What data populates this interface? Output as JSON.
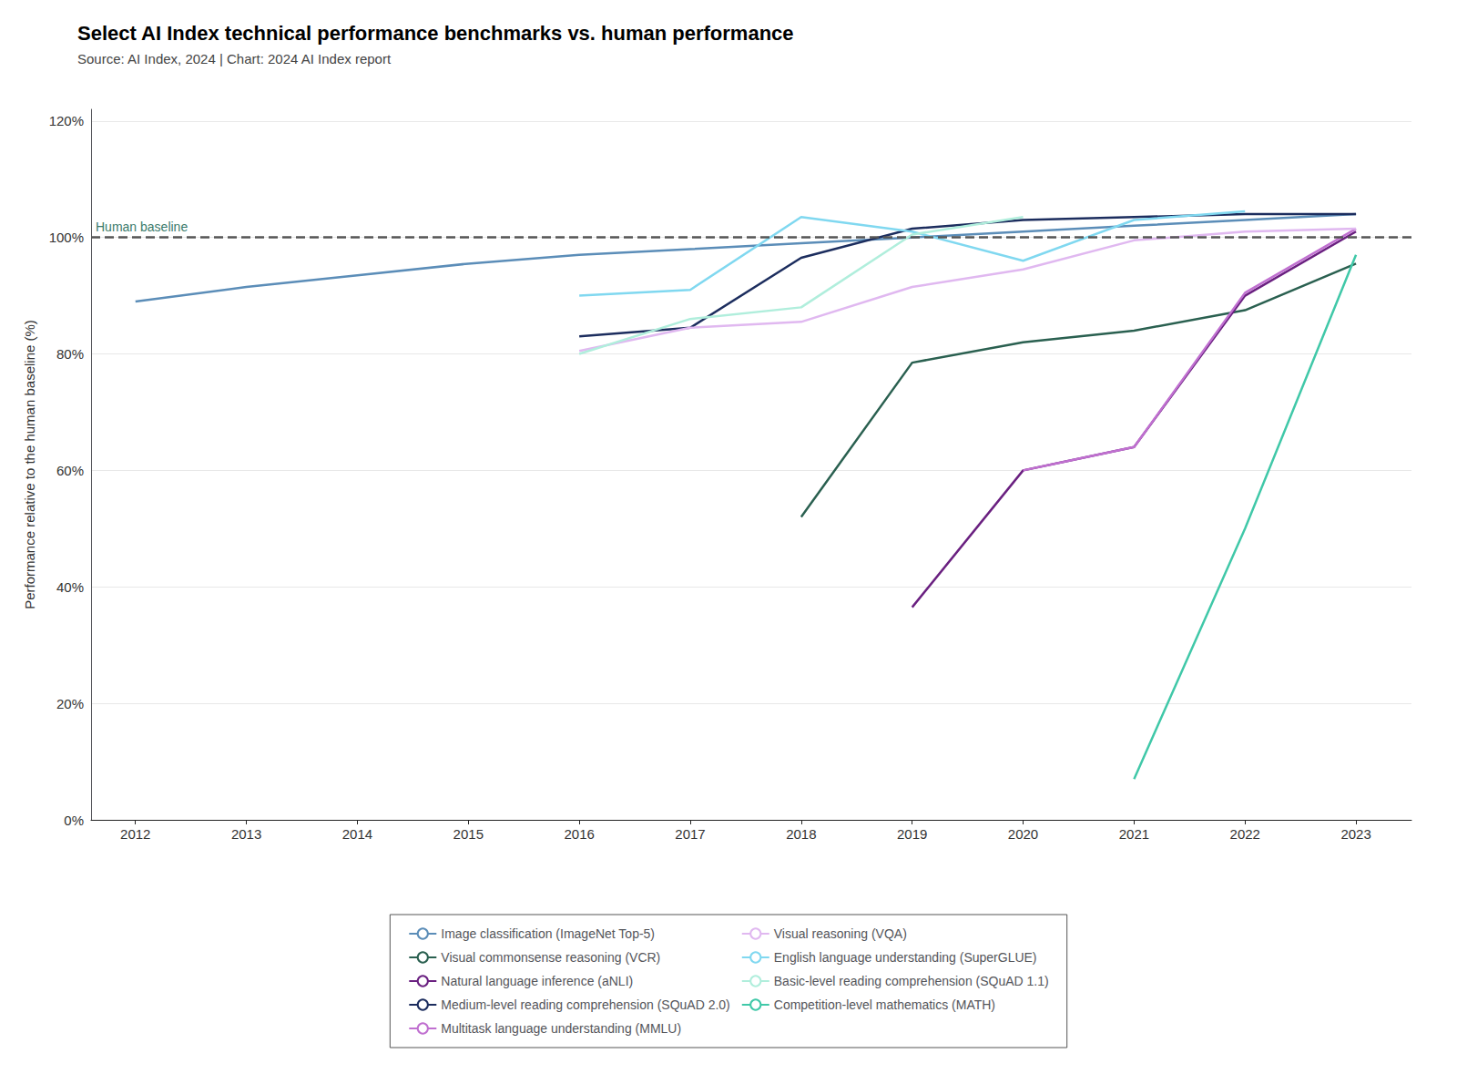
{
  "chart_data": {
    "type": "line",
    "title": "Select AI Index technical performance benchmarks vs. human performance",
    "subtitle": "Source: AI Index, 2024 | Chart: 2024 AI Index report",
    "ylabel": "Performance relative to the human baseline (%)",
    "xlim": [
      2011.6,
      2023.5
    ],
    "xticks": [
      2012,
      2013,
      2014,
      2015,
      2016,
      2017,
      2018,
      2019,
      2020,
      2021,
      2022,
      2023
    ],
    "ylim": [
      0,
      122
    ],
    "yticks": [
      {
        "value": 0,
        "label": "0%"
      },
      {
        "value": 20,
        "label": "20%"
      },
      {
        "value": 40,
        "label": "40%"
      },
      {
        "value": 60,
        "label": "60%"
      },
      {
        "value": 80,
        "label": "80%"
      },
      {
        "value": 100,
        "label": "100%"
      },
      {
        "value": 120,
        "label": "120%"
      }
    ],
    "grid": true,
    "legend": "bottom",
    "reference_line": {
      "y": 100,
      "line_style": "dashed",
      "color": "#555555",
      "annotation": {
        "text": "Human baseline",
        "color": "#3a7a6a"
      }
    },
    "series": [
      {
        "name": "Image classification (ImageNet Top-5)",
        "color": "#5b8db8",
        "x": [
          2012,
          2013,
          2014,
          2015,
          2016,
          2017,
          2018,
          2019,
          2020,
          2021,
          2022,
          2023
        ],
        "values": [
          89.0,
          91.5,
          93.5,
          95.5,
          97.0,
          98.0,
          99.0,
          100.0,
          101.0,
          102.0,
          103.0,
          104.0
        ]
      },
      {
        "name": "Visual commonsense reasoning (VCR)",
        "color": "#2a6050",
        "x": [
          2018,
          2019,
          2020,
          2021,
          2022,
          2023
        ],
        "values": [
          52.0,
          78.5,
          82.0,
          84.0,
          87.5,
          95.5
        ]
      },
      {
        "name": "Natural language inference (aNLI)",
        "color": "#6a2080",
        "x": [
          2019,
          2020,
          2021,
          2022,
          2023
        ],
        "values": [
          36.5,
          60.0,
          64.0,
          90.0,
          101.0
        ]
      },
      {
        "name": "Medium-level reading comprehension (SQuAD 2.0)",
        "color": "#1c2d5e",
        "x": [
          2016,
          2017,
          2018,
          2019,
          2020,
          2021,
          2022,
          2023
        ],
        "values": [
          83.0,
          84.5,
          96.5,
          101.5,
          103.0,
          103.5,
          104.0,
          104.0
        ]
      },
      {
        "name": "Multitask language understanding (MMLU)",
        "color": "#c070d0",
        "x": [
          2020,
          2021,
          2022,
          2023
        ],
        "values": [
          60.0,
          64.0,
          90.5,
          101.5
        ]
      },
      {
        "name": "Visual reasoning (VQA)",
        "color": "#e0b8f0",
        "x": [
          2016,
          2017,
          2018,
          2019,
          2020,
          2021,
          2022,
          2023
        ],
        "values": [
          80.5,
          84.5,
          85.5,
          91.5,
          94.5,
          99.5,
          101.0,
          101.5
        ]
      },
      {
        "name": "English language understanding (SuperGLUE)",
        "color": "#80d8f0",
        "x": [
          2016,
          2017,
          2018,
          2019,
          2020,
          2021,
          2022
        ],
        "values": [
          90.0,
          91.0,
          103.5,
          101.0,
          96.0,
          103.0,
          104.5
        ]
      },
      {
        "name": "Basic-level reading comprehension (SQuAD 1.1)",
        "color": "#b0eedc",
        "x": [
          2016,
          2017,
          2018,
          2019,
          2020
        ],
        "values": [
          80.0,
          86.0,
          88.0,
          100.5,
          103.5
        ]
      },
      {
        "name": "Competition-level mathematics (MATH)",
        "color": "#40c8a8",
        "x": [
          2021,
          2022,
          2023
        ],
        "values": [
          7.0,
          50.0,
          97.0
        ]
      }
    ]
  }
}
